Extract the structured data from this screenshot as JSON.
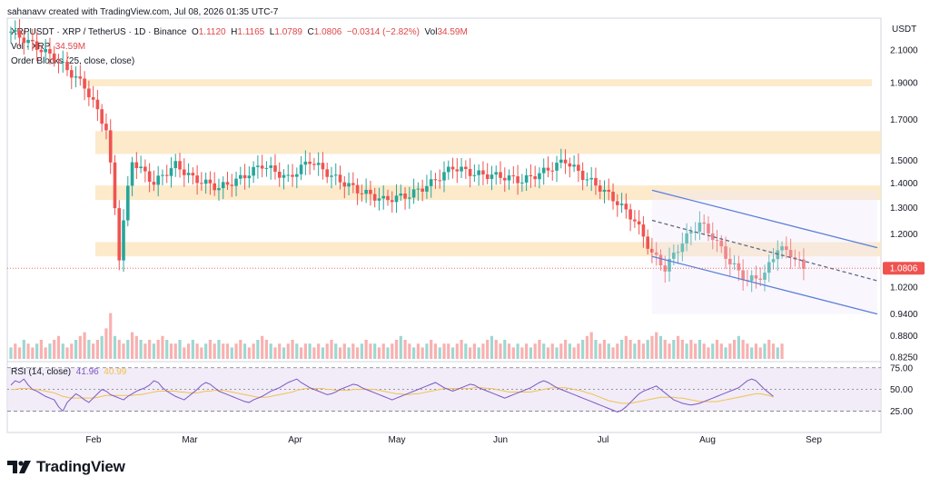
{
  "header": {
    "created_by": "sahanavv created with TradingView.com, Jul 08, 2026 01:35 UTC-7"
  },
  "legend": {
    "symbol": "XRPUSDT · XRP / TetherUS · 1D · Binance",
    "open_label": "O",
    "open": "1.1120",
    "high_label": "H",
    "high": "1.1165",
    "low_label": "L",
    "low": "1.0789",
    "close_label": "C",
    "close": "1.0806",
    "change": "−0.0314 (−2.82%)",
    "vol_label": "Vol",
    "vol_value": "34.59M",
    "vol_series": "Vol · XRP",
    "vol_series_value": "34.59M",
    "order_blocks": "Order Blocks (25, close, close)"
  },
  "rsi_legend": {
    "label": "RSI (14, close)",
    "rsi_value": "41.96",
    "ma_value": "40.99"
  },
  "currency": "USDT",
  "brand": {
    "name": "TradingView",
    "icon": "tradingview-logo-icon"
  },
  "colors": {
    "up": "#26a69a",
    "down": "#ef5350",
    "zone": "#fbe6c2",
    "channel": "#5b7fdb",
    "rsi": "#7e57c2",
    "rsi_ma": "#f2c14e",
    "price_tag": "#ef5350"
  },
  "chart_data": [
    {
      "type": "candlestick",
      "x_ticks": [
        "Feb",
        "Mar",
        "Apr",
        "May",
        "Jun",
        "Jul",
        "Aug",
        "Sep"
      ],
      "y_ticks": [
        "2.1000",
        "1.9000",
        "1.7000",
        "1.5000",
        "1.4000",
        "1.3000",
        "1.2000",
        "1.0200",
        "0.9400",
        "0.8800",
        "0.8250"
      ],
      "last_price": "1.0806",
      "price_scale": "log",
      "ylim": [
        0.82,
        2.3
      ],
      "approx_close_path": [
        [
          0,
          2.22
        ],
        [
          10,
          2.05
        ],
        [
          17,
          1.88
        ],
        [
          22,
          1.65
        ],
        [
          25,
          1.12
        ],
        [
          28,
          1.5
        ],
        [
          33,
          1.4
        ],
        [
          38,
          1.48
        ],
        [
          42,
          1.42
        ],
        [
          48,
          1.38
        ],
        [
          53,
          1.42
        ],
        [
          58,
          1.48
        ],
        [
          64,
          1.42
        ],
        [
          69,
          1.5
        ],
        [
          74,
          1.43
        ],
        [
          80,
          1.37
        ],
        [
          86,
          1.33
        ],
        [
          92,
          1.35
        ],
        [
          97,
          1.4
        ],
        [
          102,
          1.47
        ],
        [
          107,
          1.44
        ],
        [
          113,
          1.43
        ],
        [
          118,
          1.41
        ],
        [
          123,
          1.45
        ],
        [
          128,
          1.5
        ],
        [
          132,
          1.43
        ],
        [
          136,
          1.38
        ],
        [
          140,
          1.32
        ],
        [
          144,
          1.25
        ],
        [
          148,
          1.13
        ],
        [
          151,
          1.08
        ],
        [
          155,
          1.17
        ],
        [
          159,
          1.24
        ],
        [
          162,
          1.19
        ],
        [
          166,
          1.1
        ],
        [
          170,
          1.04
        ],
        [
          174,
          1.06
        ],
        [
          177,
          1.15
        ],
        [
          180,
          1.13
        ],
        [
          183,
          1.08
        ]
      ],
      "zones": [
        {
          "top": 1.92,
          "bottom": 1.88
        },
        {
          "top": 1.64,
          "bottom": 1.53
        },
        {
          "top": 1.39,
          "bottom": 1.33
        },
        {
          "top": 1.17,
          "bottom": 1.12
        }
      ],
      "channel": {
        "upper": [
          [
            148,
            1.37
          ],
          [
            200,
            1.15
          ]
        ],
        "middle": [
          [
            148,
            1.25
          ],
          [
            200,
            1.04
          ]
        ],
        "lower": [
          [
            148,
            1.12
          ],
          [
            200,
            0.94
          ]
        ]
      }
    },
    {
      "type": "bar",
      "title": "Vol · XRP",
      "values": [
        3,
        4,
        3,
        5,
        4,
        3,
        4,
        5,
        3,
        4,
        5,
        6,
        4,
        3,
        4,
        5,
        6,
        7,
        5,
        4,
        5,
        6,
        8,
        12,
        6,
        5,
        4,
        5,
        7,
        6,
        5,
        4,
        5,
        4,
        5,
        6,
        5,
        4,
        4,
        5,
        3,
        4,
        5,
        4,
        3,
        4,
        5,
        4,
        5,
        4,
        4,
        3,
        4,
        5,
        4,
        3,
        4,
        5,
        6,
        5,
        4,
        3,
        4,
        3,
        4,
        5,
        4,
        3,
        4,
        4,
        3,
        4,
        3,
        4,
        5,
        4,
        3,
        4,
        3,
        4,
        3,
        4,
        5,
        4,
        4,
        3,
        4,
        3,
        4,
        5,
        6,
        5,
        4,
        3,
        4,
        3,
        4,
        5,
        4,
        3,
        4,
        4,
        3,
        4,
        5,
        4,
        3,
        4,
        3,
        4,
        5,
        6,
        5,
        4,
        5,
        4,
        3,
        4,
        3,
        4,
        3,
        4,
        5,
        4,
        3,
        4,
        3,
        4,
        5,
        4,
        3,
        4,
        5,
        6,
        7,
        5,
        4,
        5,
        4,
        3,
        4,
        5,
        6,
        5,
        4,
        5,
        4,
        5,
        6,
        7,
        6,
        5,
        4,
        5,
        6,
        5,
        4,
        5,
        4,
        5,
        4,
        3,
        4,
        5,
        4,
        3,
        4,
        5,
        6,
        5,
        4,
        3,
        4,
        3,
        4,
        5,
        4,
        3,
        4
      ]
    },
    {
      "type": "line",
      "title": "RSI (14, close)",
      "y_ticks": [
        "75.00",
        "50.00",
        "25.00"
      ],
      "ylim": [
        15,
        80
      ],
      "rsi": [
        55,
        60,
        58,
        62,
        55,
        50,
        48,
        45,
        42,
        40,
        38,
        30,
        25,
        35,
        40,
        45,
        42,
        38,
        35,
        40,
        45,
        50,
        48,
        44,
        42,
        40,
        38,
        42,
        45,
        48,
        50,
        52,
        55,
        60,
        58,
        52,
        48,
        45,
        42,
        40,
        38,
        42,
        46,
        50,
        55,
        58,
        56,
        52,
        48,
        46,
        44,
        42,
        40,
        38,
        36,
        35,
        38,
        40,
        42,
        45,
        48,
        50,
        52,
        55,
        58,
        60,
        62,
        58,
        55,
        52,
        50,
        48,
        46,
        44,
        45,
        47,
        50,
        52,
        54,
        56,
        55,
        52,
        50,
        48,
        46,
        44,
        42,
        40,
        38,
        40,
        42,
        44,
        46,
        48,
        50,
        52,
        54,
        56,
        58,
        55,
        52,
        50,
        48,
        50,
        52,
        54,
        56,
        55,
        52,
        50,
        48,
        46,
        44,
        42,
        40,
        42,
        44,
        46,
        48,
        50,
        52,
        55,
        58,
        60,
        58,
        55,
        52,
        50,
        48,
        46,
        44,
        42,
        40,
        38,
        36,
        34,
        32,
        30,
        28,
        26,
        24,
        26,
        30,
        35,
        40,
        45,
        48,
        50,
        52,
        54,
        50,
        46,
        42,
        38,
        36,
        34,
        33,
        32,
        33,
        34,
        36,
        38,
        40,
        42,
        44,
        46,
        48,
        50,
        52,
        56,
        60,
        62,
        60,
        55,
        50,
        46,
        42
      ],
      "rsi_ma": [
        50,
        50,
        51,
        51,
        51,
        50,
        50,
        49,
        48,
        47,
        46,
        44,
        42,
        41,
        40,
        40,
        40,
        40,
        40,
        40,
        41,
        42,
        43,
        43,
        43,
        43,
        43,
        43,
        43,
        44,
        44,
        45,
        46,
        47,
        48,
        48,
        48,
        48,
        48,
        47,
        47,
        46,
        46,
        46,
        47,
        48,
        48,
        49,
        49,
        49,
        48,
        47,
        46,
        45,
        44,
        43,
        42,
        41,
        41,
        41,
        42,
        43,
        44,
        45,
        46,
        47,
        49,
        50,
        51,
        51,
        51,
        51,
        51,
        50,
        50,
        49,
        49,
        49,
        49,
        50,
        50,
        50,
        50,
        50,
        50,
        49,
        48,
        47,
        46,
        45,
        45,
        44,
        44,
        45,
        45,
        46,
        47,
        48,
        49,
        50,
        51,
        51,
        51,
        51,
        51,
        51,
        51,
        52,
        52,
        52,
        51,
        51,
        50,
        49,
        48,
        47,
        47,
        47,
        47,
        47,
        47,
        48,
        49,
        50,
        51,
        52,
        52,
        52,
        52,
        51,
        50,
        49,
        48,
        46,
        45,
        43,
        41,
        39,
        37,
        36,
        35,
        34,
        34,
        34,
        35,
        36,
        37,
        38,
        39,
        40,
        41,
        41,
        41,
        41,
        40,
        40,
        39,
        38,
        37,
        36,
        36,
        36,
        36,
        36,
        37,
        38,
        39,
        40,
        41,
        42,
        43,
        44,
        45,
        45,
        44,
        43,
        41
      ]
    }
  ]
}
